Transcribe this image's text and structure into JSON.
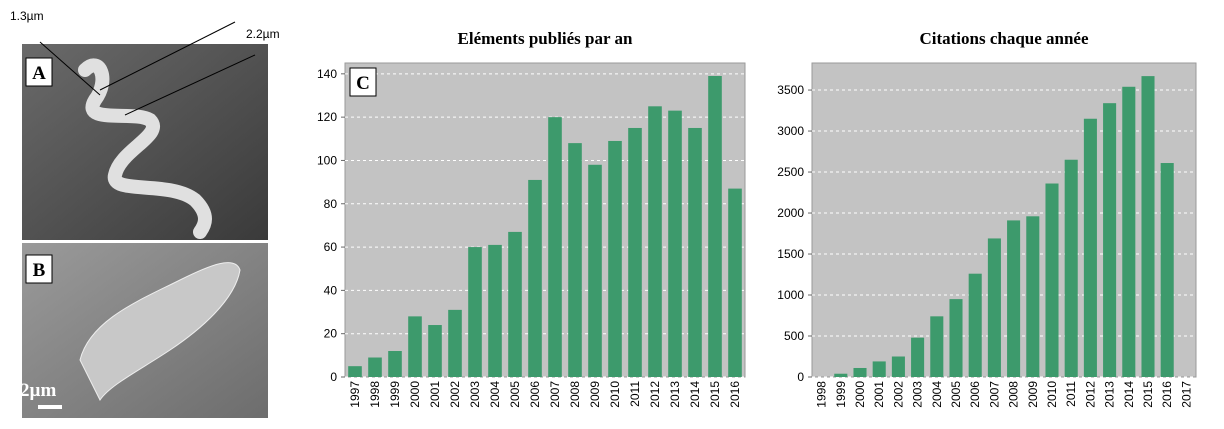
{
  "panels": [
    {
      "label": "A",
      "annotations": [
        "1.3µm",
        "2.2µm"
      ]
    },
    {
      "label": "B",
      "scale_bar": "2µm"
    }
  ],
  "chart_data": [
    {
      "type": "bar",
      "title": "Eléments publiés par an",
      "annotation": "C",
      "categories": [
        "1997",
        "1998",
        "1999",
        "2000",
        "2001",
        "2002",
        "2003",
        "2004",
        "2005",
        "2006",
        "2007",
        "2008",
        "2009",
        "2010",
        "2011",
        "2012",
        "2013",
        "2014",
        "2015",
        "2016"
      ],
      "values": [
        5,
        9,
        12,
        28,
        24,
        31,
        60,
        61,
        67,
        91,
        120,
        108,
        98,
        109,
        115,
        125,
        123,
        115,
        139,
        87
      ],
      "color": "#3d9a6c",
      "ylim": [
        0,
        145
      ],
      "yticks": [
        0,
        20,
        40,
        60,
        80,
        100,
        120,
        140
      ],
      "grid": true
    },
    {
      "type": "bar",
      "title": "Citations chaque année",
      "categories": [
        "1998",
        "1999",
        "2000",
        "2001",
        "2002",
        "2003",
        "2004",
        "2005",
        "2006",
        "2007",
        "2008",
        "2009",
        "2010",
        "2011",
        "2012",
        "2013",
        "2014",
        "2015",
        "2016",
        "2017"
      ],
      "values": [
        0,
        40,
        110,
        190,
        250,
        480,
        740,
        950,
        1260,
        1690,
        1910,
        1960,
        2360,
        2650,
        3150,
        3340,
        3540,
        3670,
        2610,
        0
      ],
      "color": "#3d9a6c",
      "ylim": [
        0,
        3830
      ],
      "yticks": [
        0,
        500,
        1000,
        1500,
        2000,
        2500,
        3000,
        3500
      ],
      "grid": true
    }
  ]
}
